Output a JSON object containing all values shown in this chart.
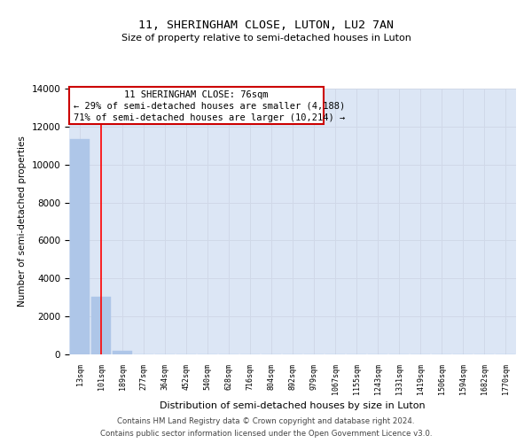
{
  "title": "11, SHERINGHAM CLOSE, LUTON, LU2 7AN",
  "subtitle": "Size of property relative to semi-detached houses in Luton",
  "xlabel": "Distribution of semi-detached houses by size in Luton",
  "ylabel": "Number of semi-detached properties",
  "categories": [
    "13sqm",
    "101sqm",
    "189sqm",
    "277sqm",
    "364sqm",
    "452sqm",
    "540sqm",
    "628sqm",
    "716sqm",
    "804sqm",
    "892sqm",
    "979sqm",
    "1067sqm",
    "1155sqm",
    "1243sqm",
    "1331sqm",
    "1419sqm",
    "1506sqm",
    "1594sqm",
    "1682sqm",
    "1770sqm"
  ],
  "values": [
    11350,
    3050,
    200,
    0,
    0,
    0,
    0,
    0,
    0,
    0,
    0,
    0,
    0,
    0,
    0,
    0,
    0,
    0,
    0,
    0,
    0
  ],
  "bar_color": "#aec6e8",
  "bar_edge_color": "#aec6e8",
  "grid_color": "#d0d8e8",
  "bg_color": "#dce6f5",
  "property_line_x": 1,
  "property_size": "76sqm",
  "pct_smaller": 29,
  "n_smaller": 4188,
  "pct_larger": 71,
  "n_larger": 10214,
  "annotation_box_color": "#cc0000",
  "ylim": [
    0,
    14000
  ],
  "yticks": [
    0,
    2000,
    4000,
    6000,
    8000,
    10000,
    12000,
    14000
  ],
  "footer_line1": "Contains HM Land Registry data © Crown copyright and database right 2024.",
  "footer_line2": "Contains public sector information licensed under the Open Government Licence v3.0."
}
